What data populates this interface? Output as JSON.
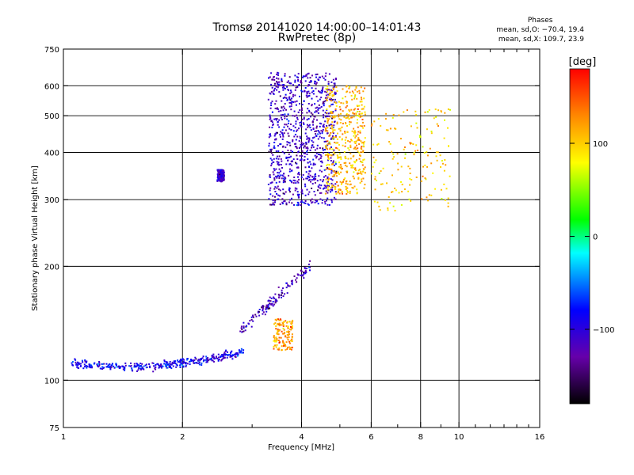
{
  "header": {
    "title": "Tromsø 20141020 14:00:00–14:01:43",
    "subtitle": "RwPretec (8p)",
    "phase_title": "Phases",
    "phase_o": "mean, sd,O: −70.4, 19.4",
    "phase_x": "mean, sd,X: 109.7, 23.9"
  },
  "chart_data": {
    "type": "scatter",
    "xlabel": "Frequency [MHz]",
    "ylabel": "Stationary phase Virtual Height [km]",
    "x_scale": "log",
    "y_scale": "log",
    "xlim": [
      1,
      16
    ],
    "ylim": [
      75,
      750
    ],
    "x_ticks": [
      1,
      2,
      4,
      6,
      8,
      10,
      16
    ],
    "x_ticks_minor": [
      3,
      5,
      7,
      9,
      11,
      12,
      13,
      14,
      15
    ],
    "y_ticks": [
      75,
      100,
      200,
      300,
      400,
      500,
      600,
      750
    ],
    "grid": true,
    "colorbar": {
      "label": "[deg]",
      "ticks": [
        100,
        0,
        -100
      ],
      "range": [
        -180,
        180
      ],
      "colors": [
        "#000000",
        "#6600aa",
        "#0000ff",
        "#00ffff",
        "#00ff00",
        "#ffff00",
        "#ff8800",
        "#ff0000"
      ]
    },
    "clusters": [
      {
        "name": "low-band trace",
        "freq": [
          1.05,
          2.9
        ],
        "height": [
          100,
          135
        ],
        "phase_deg": -90
      },
      {
        "name": "E/F1 rise",
        "freq": [
          2.8,
          4.2
        ],
        "height": [
          135,
          200
        ],
        "phase_deg": -120
      },
      {
        "name": "patch near 2.5 MHz",
        "freq": [
          2.45,
          2.55
        ],
        "height": [
          335,
          360
        ],
        "phase_deg": -110
      },
      {
        "name": "F2 O-mode",
        "freq": [
          3.3,
          4.9
        ],
        "height": [
          290,
          650
        ],
        "phase_deg": -110
      },
      {
        "name": "F2 X-mode",
        "freq": [
          4.6,
          5.8
        ],
        "height": [
          310,
          600
        ],
        "phase_deg": 110
      },
      {
        "name": "scattered high band",
        "freq": [
          6.0,
          9.5
        ],
        "height": [
          280,
          520
        ],
        "phase_deg": 100
      },
      {
        "name": "mid-height X echoes",
        "freq": [
          3.4,
          3.8
        ],
        "height": [
          120,
          145
        ],
        "phase_deg": 120
      }
    ]
  }
}
